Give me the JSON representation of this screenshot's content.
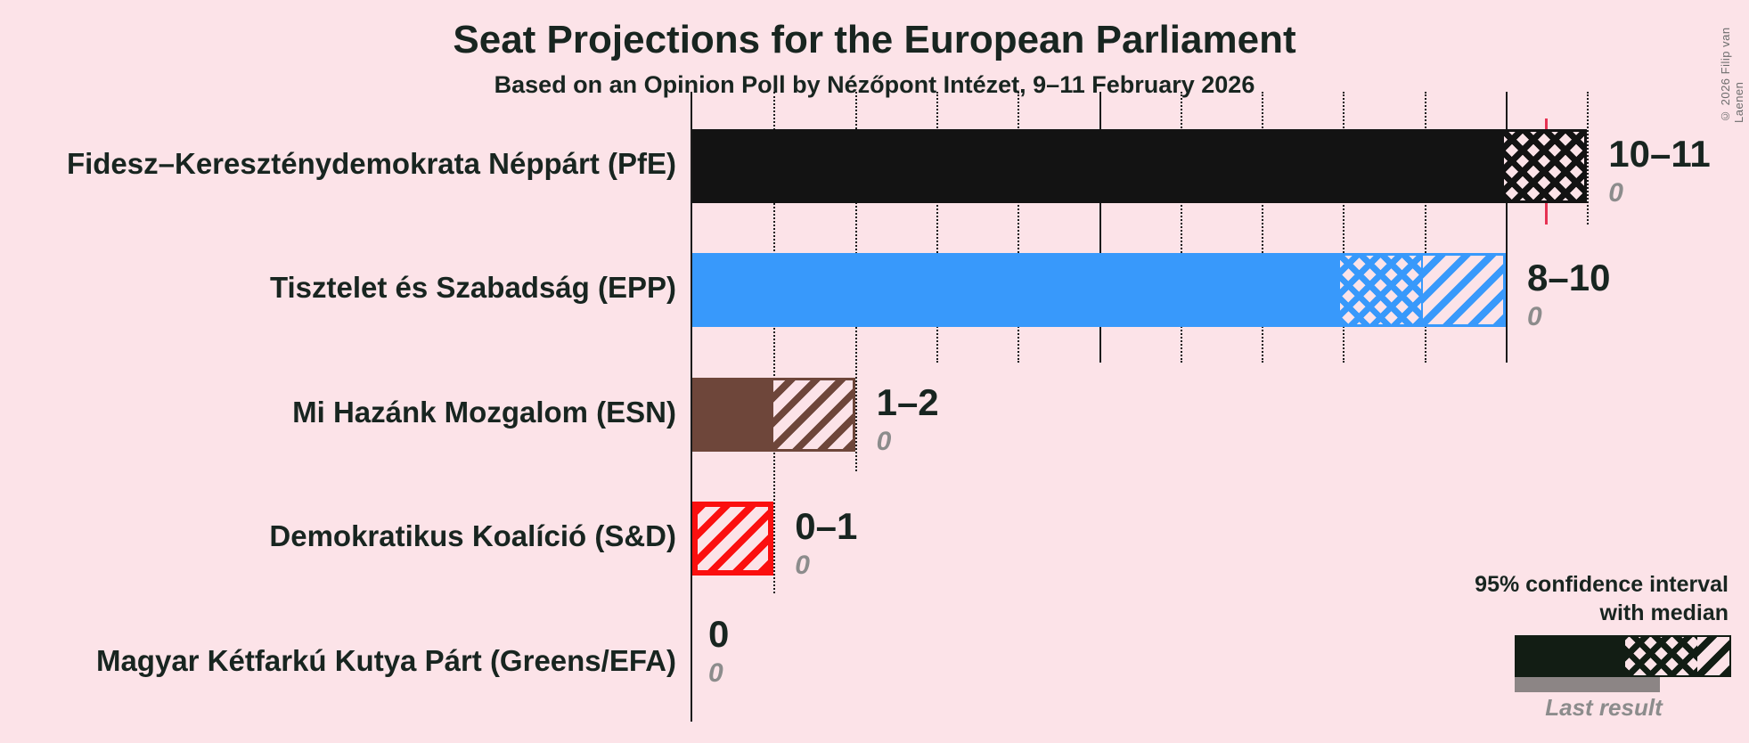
{
  "title": "Seat Projections for the European Parliament",
  "subtitle": "Based on an Opinion Poll by Nézőpont Intézet, 9–11 February 2026",
  "copyright": "© 2026 Filip van Laenen",
  "legend": {
    "line1": "95% confidence interval",
    "line2": "with median",
    "last_result_label": "Last result"
  },
  "colors": {
    "background": "#fce3e8",
    "text": "#182520",
    "gridline": "#1b1b1b",
    "majority_line": "#e63253",
    "last_result_gray": "#8c8c8c",
    "legend_sample_dark": "#121d14",
    "legend_gray_bar": "#8c8585"
  },
  "chart_data": {
    "type": "bar",
    "orientation": "horizontal",
    "unit": "seats",
    "x_axis": {
      "min": 0,
      "max": 11,
      "minor_tick_step": 1,
      "major_tick_step": 5,
      "gridlines": "dotted-minor-solid-major"
    },
    "majority_line_seats": 10.5,
    "note": "solid = lower bound, crosshatch = lower-to-median, diagonal = median-to-upper of 95% CI",
    "parties": [
      {
        "label": "Fidesz–Kereszténydemokrata Néppárt (PfE)",
        "ci_low": 10,
        "median": 11,
        "ci_high": 11,
        "value_label": "10–11",
        "last_result": "0",
        "color": "#131313"
      },
      {
        "label": "Tisztelet és Szabadság (EPP)",
        "ci_low": 8,
        "median": 9,
        "ci_high": 10,
        "value_label": "8–10",
        "last_result": "0",
        "color": "#3899fb"
      },
      {
        "label": "Mi Hazánk Mozgalom (ESN)",
        "ci_low": 1,
        "median": 1,
        "ci_high": 2,
        "value_label": "1–2",
        "last_result": "0",
        "color": "#6e463a"
      },
      {
        "label": "Demokratikus Koalíció (S&D)",
        "ci_low": 0,
        "median": 0,
        "ci_high": 1,
        "value_label": "0–1",
        "last_result": "0",
        "color": "#fb0f0f"
      },
      {
        "label": "Magyar Kétfarkú Kutya Párt (Greens/EFA)",
        "ci_low": 0,
        "median": 0,
        "ci_high": 0,
        "value_label": "0",
        "last_result": "0",
        "color": "#4caf50"
      }
    ]
  }
}
